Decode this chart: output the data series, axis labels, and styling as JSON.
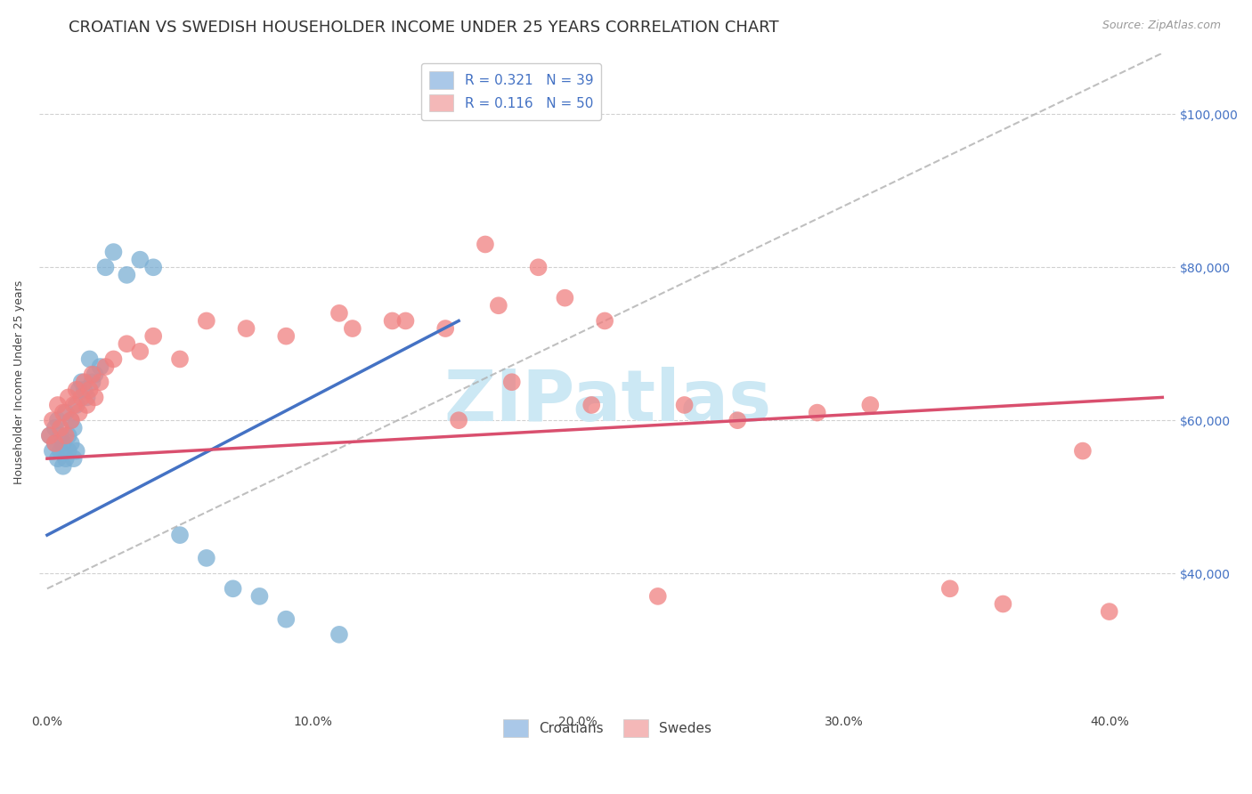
{
  "title": "CROATIAN VS SWEDISH HOUSEHOLDER INCOME UNDER 25 YEARS CORRELATION CHART",
  "source": "Source: ZipAtlas.com",
  "ylabel": "Householder Income Under 25 years",
  "xlabel_ticks": [
    "0.0%",
    "10.0%",
    "20.0%",
    "30.0%",
    "40.0%"
  ],
  "xlabel_vals": [
    0.0,
    0.1,
    0.2,
    0.3,
    0.4
  ],
  "ytick_labels": [
    "$40,000",
    "$60,000",
    "$80,000",
    "$100,000"
  ],
  "ytick_vals": [
    40000,
    60000,
    80000,
    100000
  ],
  "ymin": 22000,
  "ymax": 108000,
  "xmin": -0.003,
  "xmax": 0.425,
  "legend_croatians": "Croatians",
  "legend_swedes": "Swedes",
  "croatian_color": "#7bafd4",
  "swedish_color": "#f08080",
  "croatian_legend_color": "#aac8e8",
  "swedish_legend_color": "#f4b8b8",
  "croatian_x": [
    0.001,
    0.002,
    0.003,
    0.003,
    0.004,
    0.004,
    0.005,
    0.005,
    0.006,
    0.006,
    0.007,
    0.007,
    0.008,
    0.008,
    0.009,
    0.009,
    0.01,
    0.01,
    0.011,
    0.011,
    0.012,
    0.013,
    0.014,
    0.015,
    0.016,
    0.017,
    0.018,
    0.02,
    0.022,
    0.025,
    0.03,
    0.035,
    0.04,
    0.05,
    0.06,
    0.07,
    0.08,
    0.09,
    0.11
  ],
  "croatian_y": [
    58000,
    56000,
    57000,
    59000,
    55000,
    60000,
    56000,
    58000,
    54000,
    57000,
    55000,
    61000,
    56000,
    58000,
    57000,
    60000,
    55000,
    59000,
    56000,
    62000,
    64000,
    65000,
    64000,
    63000,
    68000,
    65000,
    66000,
    67000,
    80000,
    82000,
    79000,
    81000,
    80000,
    45000,
    42000,
    38000,
    37000,
    34000,
    32000
  ],
  "swedish_x": [
    0.001,
    0.002,
    0.003,
    0.004,
    0.005,
    0.006,
    0.007,
    0.008,
    0.009,
    0.01,
    0.011,
    0.012,
    0.013,
    0.014,
    0.015,
    0.016,
    0.017,
    0.018,
    0.02,
    0.022,
    0.025,
    0.03,
    0.035,
    0.04,
    0.05,
    0.06,
    0.075,
    0.09,
    0.11,
    0.13,
    0.15,
    0.17,
    0.195,
    0.21,
    0.24,
    0.26,
    0.29,
    0.31,
    0.34,
    0.36,
    0.39,
    0.165,
    0.185,
    0.205,
    0.115,
    0.135,
    0.155,
    0.175,
    0.23,
    0.4
  ],
  "swedish_y": [
    58000,
    60000,
    57000,
    62000,
    59000,
    61000,
    58000,
    63000,
    60000,
    62000,
    64000,
    61000,
    63000,
    65000,
    62000,
    64000,
    66000,
    63000,
    65000,
    67000,
    68000,
    70000,
    69000,
    71000,
    68000,
    73000,
    72000,
    71000,
    74000,
    73000,
    72000,
    75000,
    76000,
    73000,
    62000,
    60000,
    61000,
    62000,
    38000,
    36000,
    56000,
    83000,
    80000,
    62000,
    72000,
    73000,
    60000,
    65000,
    37000,
    35000
  ],
  "watermark": "ZIPatlas",
  "watermark_color": "#cce8f4",
  "title_fontsize": 13,
  "axis_label_fontsize": 9,
  "tick_fontsize": 10,
  "legend_fontsize": 11,
  "source_fontsize": 9,
  "grid_color": "#cccccc",
  "background_color": "#ffffff",
  "blue_line_color": "#4472c4",
  "pink_line_color": "#d94f6e",
  "diagonal_color": "#b0b0b0",
  "r_croatian": 0.321,
  "n_croatian": 39,
  "r_swedish": 0.116,
  "n_swedish": 50
}
